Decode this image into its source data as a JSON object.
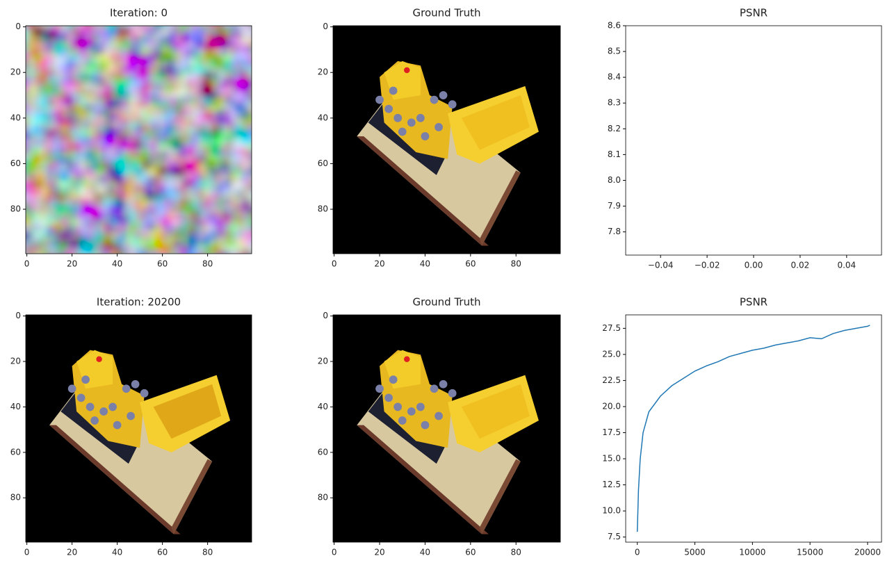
{
  "chart_data": [
    {
      "type": "image",
      "title": "Iteration: 0",
      "xlim": [
        -0.5,
        99.5
      ],
      "ylim": [
        99.5,
        -0.5
      ],
      "xticks": [
        0,
        20,
        40,
        60,
        80
      ],
      "yticks": [
        0,
        20,
        40,
        60,
        80
      ]
    },
    {
      "type": "image",
      "title": "Ground Truth",
      "xlim": [
        -0.5,
        99.5
      ],
      "ylim": [
        99.5,
        -0.5
      ],
      "xticks": [
        0,
        20,
        40,
        60,
        80
      ],
      "yticks": [
        0,
        20,
        40,
        60,
        80
      ]
    },
    {
      "type": "line",
      "title": "PSNR",
      "xlim": [
        -0.055,
        0.055
      ],
      "ylim": [
        7.71,
        8.6
      ],
      "xticks": [
        {
          "value": -0.04,
          "label": "−0.04"
        },
        {
          "value": -0.02,
          "label": "−0.02"
        },
        {
          "value": 0,
          "label": "0.00"
        },
        0.02,
        0.04
      ],
      "yticks": [
        7.8,
        7.9,
        {
          "value": 8,
          "label": "8.0"
        },
        8.1,
        8.2,
        8.3,
        8.4,
        8.5,
        8.6
      ]
    },
    {
      "type": "image",
      "title": "Iteration: 20200",
      "xlim": [
        -0.5,
        99.5
      ],
      "ylim": [
        99.5,
        -0.5
      ],
      "xticks": [
        0,
        20,
        40,
        60,
        80
      ],
      "yticks": [
        0,
        20,
        40,
        60,
        80
      ]
    },
    {
      "type": "image",
      "title": "Ground Truth",
      "xlim": [
        -0.5,
        99.5
      ],
      "ylim": [
        99.5,
        -0.5
      ],
      "xticks": [
        0,
        20,
        40,
        60,
        80
      ],
      "yticks": [
        0,
        20,
        40,
        60,
        80
      ]
    },
    {
      "type": "line",
      "title": "PSNR",
      "xlim": [
        -1010,
        21210
      ],
      "ylim": [
        7.01,
        28.79
      ],
      "color": "#1f77b4",
      "xticks": [
        0,
        5000,
        10000,
        15000,
        20000
      ],
      "yticks": [
        7.5,
        {
          "value": 10,
          "label": "10.0"
        },
        12.5,
        {
          "value": 15,
          "label": "15.0"
        },
        17.5,
        {
          "value": 20,
          "label": "20.0"
        },
        22.5,
        {
          "value": 25,
          "label": "25.0"
        },
        27.5
      ],
      "x": [
        0,
        100,
        250,
        500,
        1000,
        2000,
        3000,
        4000,
        5000,
        6000,
        7000,
        8000,
        9000,
        10000,
        11000,
        12000,
        13000,
        14000,
        15000,
        16000,
        17000,
        18000,
        19000,
        20000,
        20200
      ],
      "values": [
        8.0,
        12.0,
        15.0,
        17.5,
        19.5,
        21.0,
        22.0,
        22.7,
        23.4,
        23.9,
        24.3,
        24.8,
        25.1,
        25.4,
        25.6,
        25.9,
        26.1,
        26.3,
        26.6,
        26.5,
        27.0,
        27.3,
        27.5,
        27.7,
        27.8
      ]
    }
  ]
}
